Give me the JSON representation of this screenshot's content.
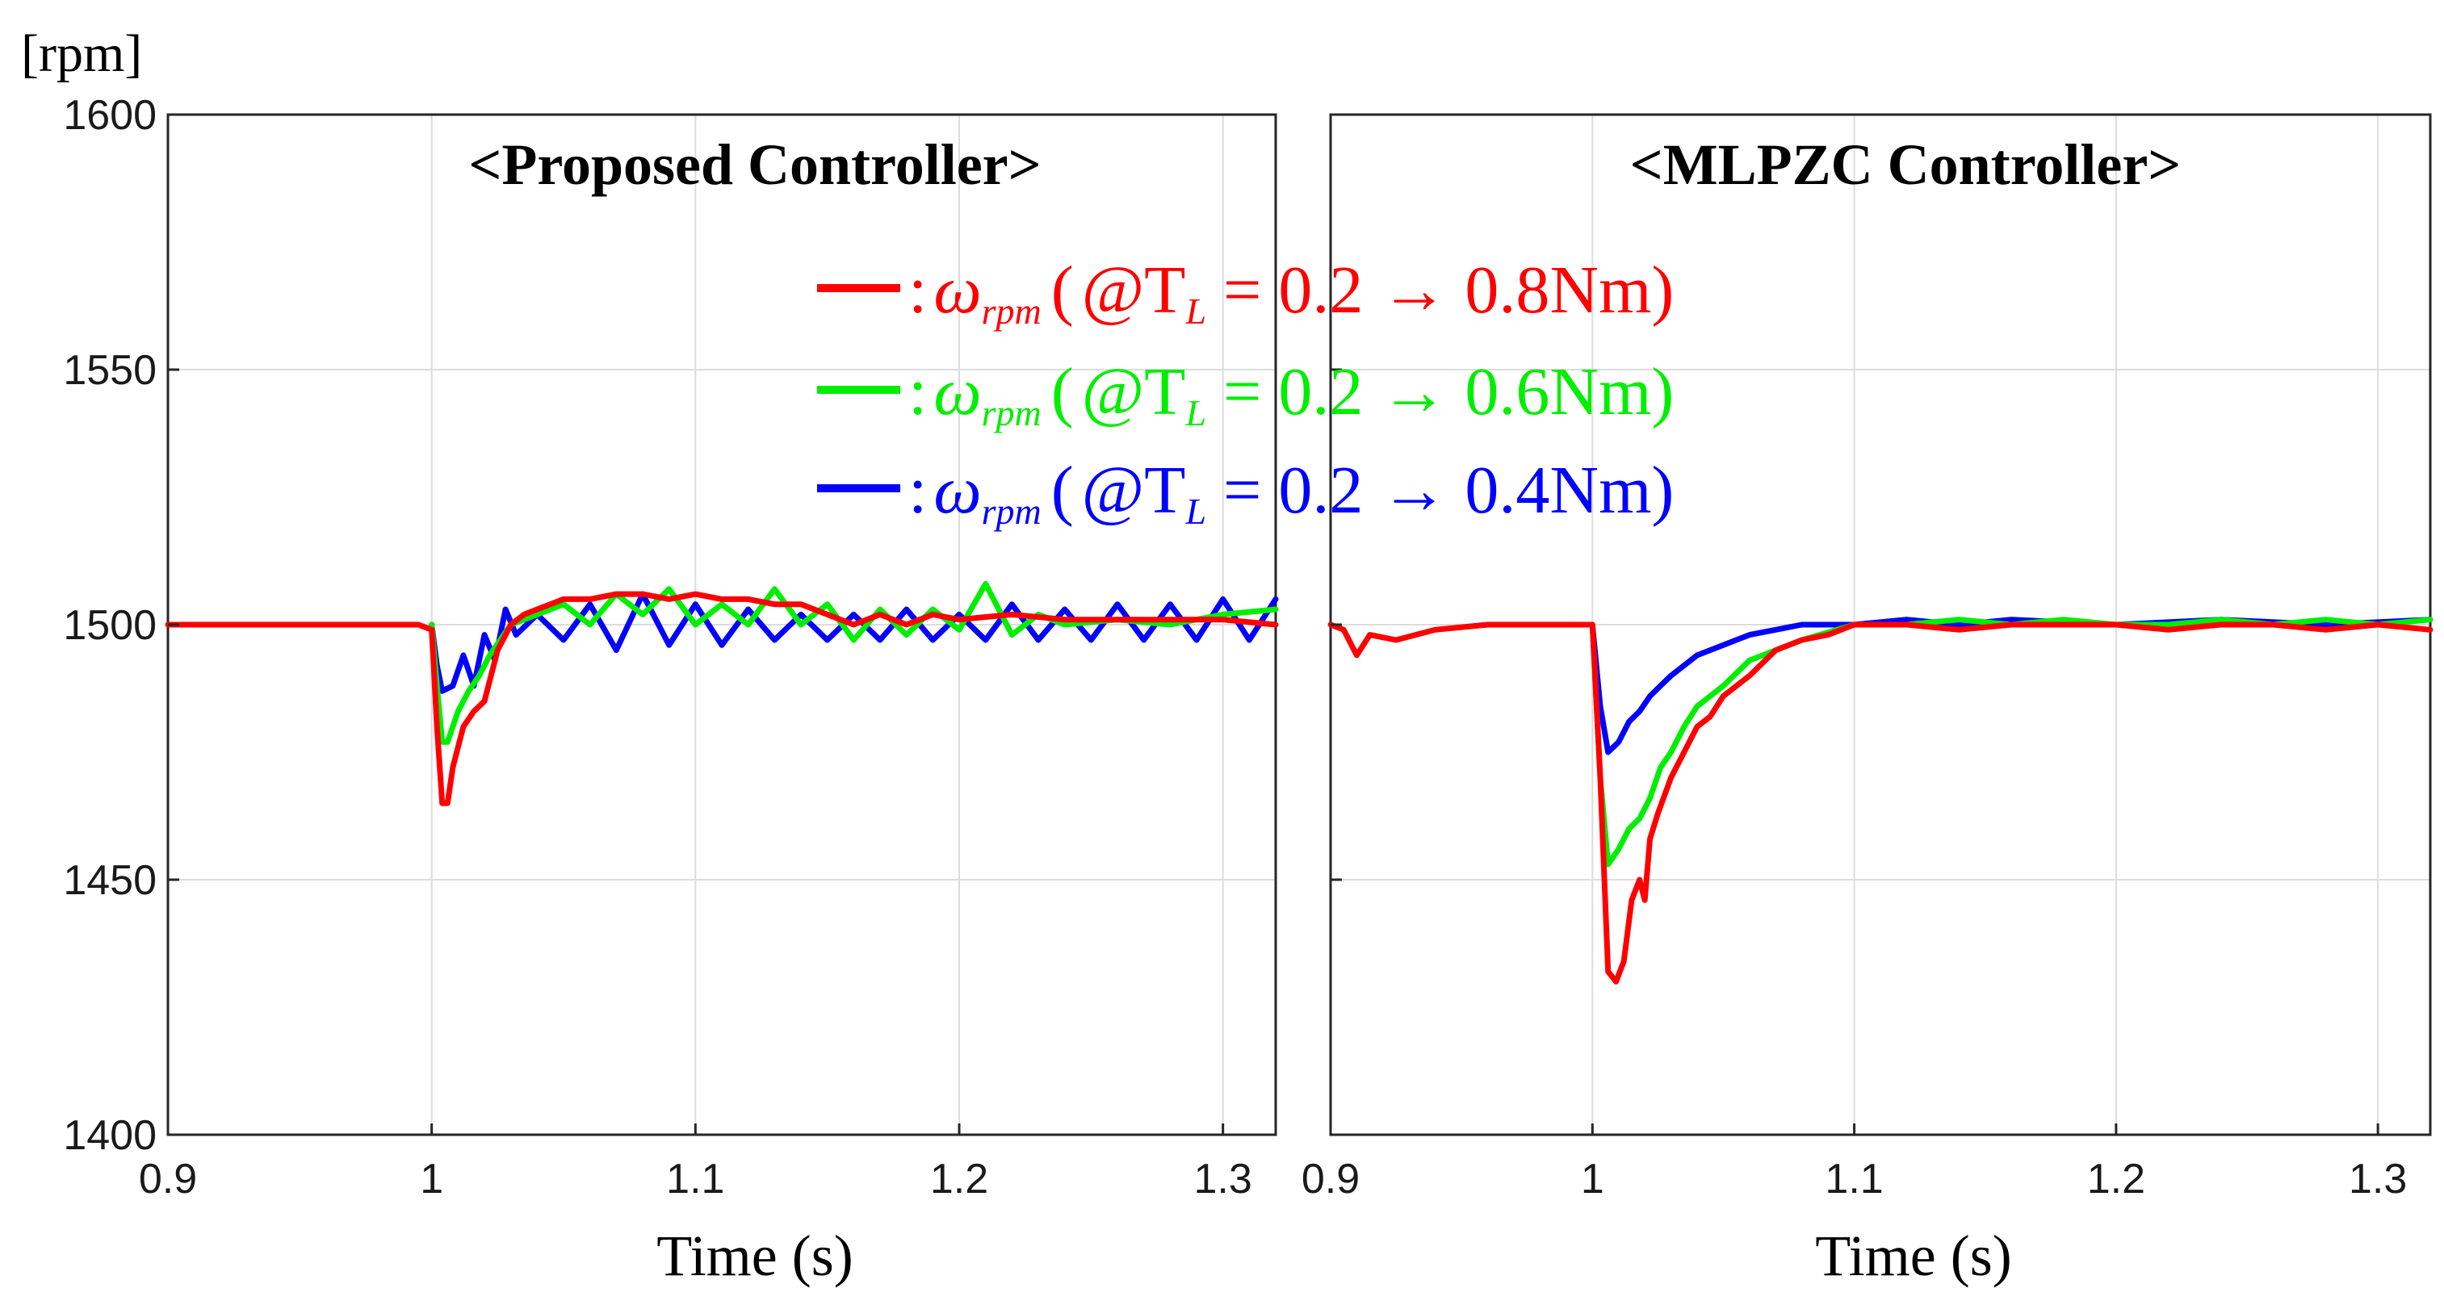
{
  "figure": {
    "y_unit_label": "[rpm]"
  },
  "chart_data": [
    {
      "type": "line",
      "title": "<Proposed Controller>",
      "xlabel": "Time (s)",
      "ylabel": "",
      "xlim": [
        0.9,
        1.32
      ],
      "ylim": [
        1400,
        1600
      ],
      "xticks": [
        "0.9",
        "1",
        "1.1",
        "1.2",
        "1.3"
      ],
      "yticks": [
        "1400",
        "1450",
        "1500",
        "1550",
        "1600"
      ],
      "grid": true,
      "series": [
        {
          "name": "TL = 0.2 → 0.8Nm",
          "color": "#ff0000",
          "x": [
            0.9,
            0.995,
            1.0,
            1.002,
            1.004,
            1.006,
            1.008,
            1.01,
            1.012,
            1.016,
            1.02,
            1.025,
            1.03,
            1.035,
            1.04,
            1.045,
            1.05,
            1.06,
            1.07,
            1.08,
            1.09,
            1.1,
            1.11,
            1.12,
            1.13,
            1.14,
            1.15,
            1.16,
            1.17,
            1.18,
            1.19,
            1.2,
            1.22,
            1.24,
            1.26,
            1.28,
            1.3,
            1.32
          ],
          "y": [
            1500,
            1500,
            1499,
            1480,
            1465,
            1465,
            1472,
            1476,
            1480,
            1483,
            1485,
            1495,
            1500,
            1502,
            1503,
            1504,
            1505,
            1505,
            1506,
            1506,
            1505,
            1506,
            1505,
            1505,
            1504,
            1504,
            1502,
            1500,
            1502,
            1500,
            1502,
            1501,
            1502,
            1501,
            1501,
            1501,
            1501,
            1500
          ]
        },
        {
          "name": "TL = 0.2 → 0.6Nm",
          "color": "#00ee00",
          "x": [
            1.0,
            1.002,
            1.004,
            1.006,
            1.01,
            1.014,
            1.018,
            1.022,
            1.03,
            1.04,
            1.05,
            1.06,
            1.07,
            1.08,
            1.09,
            1.1,
            1.11,
            1.12,
            1.13,
            1.14,
            1.15,
            1.16,
            1.17,
            1.18,
            1.19,
            1.2,
            1.21,
            1.22,
            1.23,
            1.24,
            1.26,
            1.28,
            1.3,
            1.32
          ],
          "y": [
            1500,
            1488,
            1477,
            1477,
            1483,
            1487,
            1490,
            1494,
            1500,
            1502,
            1504,
            1500,
            1506,
            1502,
            1507,
            1500,
            1504,
            1500,
            1507,
            1500,
            1504,
            1497,
            1503,
            1498,
            1503,
            1499,
            1508,
            1498,
            1502,
            1500,
            1501,
            1500,
            1502,
            1503
          ]
        },
        {
          "name": "TL = 0.2 → 0.4Nm",
          "color": "#0000ff",
          "x": [
            1.0,
            1.002,
            1.004,
            1.008,
            1.012,
            1.016,
            1.02,
            1.024,
            1.028,
            1.032,
            1.04,
            1.05,
            1.06,
            1.07,
            1.08,
            1.09,
            1.1,
            1.11,
            1.12,
            1.13,
            1.14,
            1.15,
            1.16,
            1.17,
            1.18,
            1.19,
            1.2,
            1.21,
            1.22,
            1.23,
            1.24,
            1.25,
            1.26,
            1.27,
            1.28,
            1.29,
            1.3,
            1.31,
            1.32
          ],
          "y": [
            1500,
            1492,
            1487,
            1488,
            1494,
            1488,
            1498,
            1493,
            1503,
            1498,
            1502,
            1497,
            1504,
            1495,
            1506,
            1496,
            1504,
            1496,
            1503,
            1497,
            1502,
            1497,
            1502,
            1497,
            1503,
            1497,
            1502,
            1497,
            1504,
            1497,
            1503,
            1497,
            1504,
            1497,
            1504,
            1497,
            1505,
            1497,
            1505
          ]
        }
      ]
    },
    {
      "type": "line",
      "title": "<MLPZC Controller>",
      "xlabel": "Time (s)",
      "ylabel": "",
      "xlim": [
        0.9,
        1.32
      ],
      "ylim": [
        1400,
        1600
      ],
      "xticks": [
        "0.9",
        "1",
        "1.1",
        "1.2",
        "1.3"
      ],
      "yticks": [],
      "grid": true,
      "series": [
        {
          "name": "TL = 0.2 → 0.8Nm",
          "color": "#ff0000",
          "x": [
            0.9,
            0.905,
            0.91,
            0.915,
            0.925,
            0.94,
            0.96,
            0.98,
            0.995,
            1.0,
            1.003,
            1.006,
            1.009,
            1.012,
            1.015,
            1.018,
            1.02,
            1.022,
            1.025,
            1.03,
            1.035,
            1.04,
            1.045,
            1.05,
            1.06,
            1.07,
            1.08,
            1.09,
            1.1,
            1.12,
            1.14,
            1.16,
            1.18,
            1.2,
            1.22,
            1.24,
            1.26,
            1.28,
            1.3,
            1.32
          ],
          "y": [
            1500,
            1499,
            1494,
            1498,
            1497,
            1499,
            1500,
            1500,
            1500,
            1500,
            1470,
            1432,
            1430,
            1434,
            1446,
            1450,
            1446,
            1458,
            1463,
            1470,
            1475,
            1480,
            1482,
            1486,
            1490,
            1495,
            1497,
            1498,
            1500,
            1500,
            1499,
            1500,
            1500,
            1500,
            1499,
            1500,
            1500,
            1499,
            1500,
            1499
          ]
        },
        {
          "name": "TL = 0.2 → 0.6Nm",
          "color": "#00ee00",
          "x": [
            1.0,
            1.003,
            1.006,
            1.01,
            1.014,
            1.018,
            1.022,
            1.026,
            1.03,
            1.035,
            1.04,
            1.05,
            1.06,
            1.07,
            1.08,
            1.1,
            1.12,
            1.14,
            1.16,
            1.18,
            1.2,
            1.22,
            1.24,
            1.26,
            1.28,
            1.3,
            1.32
          ],
          "y": [
            1500,
            1470,
            1453,
            1456,
            1460,
            1462,
            1466,
            1472,
            1475,
            1480,
            1484,
            1488,
            1493,
            1495,
            1497,
            1500,
            1500,
            1501,
            1500,
            1501,
            1500,
            1500,
            1501,
            1500,
            1501,
            1500,
            1501
          ]
        },
        {
          "name": "TL = 0.2 → 0.4Nm",
          "color": "#0000ff",
          "x": [
            1.0,
            1.003,
            1.006,
            1.01,
            1.014,
            1.018,
            1.022,
            1.026,
            1.03,
            1.04,
            1.05,
            1.06,
            1.07,
            1.08,
            1.1,
            1.12,
            1.14,
            1.16,
            1.2,
            1.24,
            1.28,
            1.32
          ],
          "y": [
            1500,
            1484,
            1475,
            1477,
            1481,
            1483,
            1486,
            1488,
            1490,
            1494,
            1496,
            1498,
            1499,
            1500,
            1500,
            1501,
            1500,
            1501,
            1500,
            1501,
            1500,
            1501
          ]
        }
      ]
    }
  ],
  "legend": {
    "placement": "top-center",
    "entries": [
      {
        "color": "#ff0000",
        "separator": ":",
        "symbol": "ω",
        "subscript": "rpm",
        "open_paren": "(",
        "condition": "@T",
        "condition_sub": "L",
        "expression": " = 0.2 → 0.8Nm",
        "close_paren": ")"
      },
      {
        "color": "#00ee00",
        "separator": ":",
        "symbol": "ω",
        "subscript": "rpm",
        "open_paren": "(",
        "condition": "@T",
        "condition_sub": "L",
        "expression": " = 0.2 → 0.6Nm",
        "close_paren": ")"
      },
      {
        "color": "#0000ff",
        "separator": ":",
        "symbol": "ω",
        "subscript": "rpm",
        "open_paren": "(",
        "condition": "@T",
        "condition_sub": "L",
        "expression": " = 0.2 → 0.4Nm",
        "close_paren": ")"
      }
    ]
  }
}
